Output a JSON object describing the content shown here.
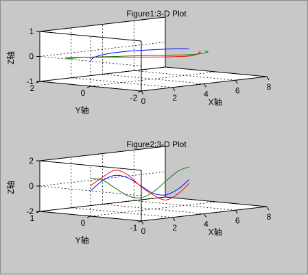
{
  "chart_data": [
    {
      "type": "line",
      "subtype": "3d-line",
      "title": "Figure1:3-D Plot",
      "xlabel": "X轴",
      "ylabel": "Y轴",
      "zlabel": "Z轴",
      "xlim": [
        0,
        8
      ],
      "ylim": [
        -2,
        2
      ],
      "zlim": [
        -1,
        1
      ],
      "xticks": [
        "0",
        "2",
        "4",
        "6",
        "8"
      ],
      "yticks": [
        "-2",
        "0",
        "2"
      ],
      "zticks": [
        "-1",
        "0",
        "1"
      ],
      "grid": true,
      "series": [
        {
          "color": "#0000ff",
          "points": [
            [
              0.0,
              0.0,
              0.02
            ],
            [
              1.0,
              0.5,
              0.02
            ],
            [
              2.0,
              0.8,
              0.03
            ],
            [
              3.0,
              0.9,
              0.04
            ],
            [
              4.0,
              0.8,
              0.05
            ],
            [
              5.0,
              0.5,
              0.06
            ],
            [
              6.0,
              0.2,
              0.05
            ],
            [
              6.28,
              0.0,
              0.04
            ]
          ]
        },
        {
          "color": "#008000",
          "points": [
            [
              0.0,
              1.0,
              0.0
            ],
            [
              1.0,
              0.8,
              0.01
            ],
            [
              2.0,
              0.3,
              0.02
            ],
            [
              3.0,
              -0.2,
              0.03
            ],
            [
              4.0,
              -0.7,
              0.02
            ],
            [
              5.0,
              -1.0,
              0.01
            ],
            [
              6.0,
              -0.9,
              0.02
            ],
            [
              6.28,
              -0.6,
              0.03
            ]
          ]
        },
        {
          "color": "#ff0000",
          "points": [
            [
              0.0,
              1.0,
              0.05
            ],
            [
              1.0,
              0.6,
              0.03
            ],
            [
              2.0,
              0.1,
              0.01
            ],
            [
              3.0,
              -0.4,
              -0.01
            ],
            [
              4.0,
              -0.8,
              -0.03
            ],
            [
              5.0,
              -0.9,
              -0.05
            ],
            [
              6.0,
              -0.6,
              -0.02
            ],
            [
              6.28,
              -0.4,
              0.0
            ]
          ]
        }
      ]
    },
    {
      "type": "line",
      "subtype": "3d-line",
      "title": "Figure2:3-D Plot",
      "xlabel": "X轴",
      "ylabel": "Y轴",
      "zlabel": "Z轴",
      "xlim": [
        0,
        8
      ],
      "ylim": [
        -1,
        1
      ],
      "zlim": [
        -2,
        2
      ],
      "xticks": [
        "0",
        "2",
        "4",
        "6",
        "8"
      ],
      "yticks": [
        "-1",
        "0",
        "1"
      ],
      "zticks": [
        "-2",
        "0",
        "2"
      ],
      "grid": true,
      "series": [
        {
          "color": "#0000ff",
          "points": [
            [
              0.0,
              0.0,
              0.0
            ],
            [
              0.8,
              0.0,
              0.72
            ],
            [
              1.6,
              0.0,
              1.0
            ],
            [
              2.4,
              0.0,
              0.68
            ],
            [
              3.2,
              0.0,
              -0.06
            ],
            [
              4.0,
              0.0,
              -0.76
            ],
            [
              4.8,
              0.0,
              -1.0
            ],
            [
              5.6,
              0.0,
              -0.63
            ],
            [
              6.28,
              0.0,
              0.0
            ]
          ]
        },
        {
          "color": "#008000",
          "points": [
            [
              0.0,
              0.0,
              1.0
            ],
            [
              0.8,
              0.0,
              0.7
            ],
            [
              1.6,
              0.0,
              -0.03
            ],
            [
              2.4,
              0.0,
              -0.74
            ],
            [
              3.2,
              0.0,
              -1.0
            ],
            [
              4.0,
              0.0,
              -0.65
            ],
            [
              4.8,
              0.0,
              0.09
            ],
            [
              5.6,
              0.0,
              0.78
            ],
            [
              6.28,
              0.0,
              1.0
            ]
          ]
        },
        {
          "color": "#ff0000",
          "points": [
            [
              0.0,
              0.0,
              0.4
            ],
            [
              0.8,
              0.0,
              1.0
            ],
            [
              1.6,
              0.0,
              1.4
            ],
            [
              2.4,
              0.0,
              0.9
            ],
            [
              3.2,
              0.0,
              -0.1
            ],
            [
              4.0,
              0.0,
              -0.9
            ],
            [
              4.8,
              0.0,
              -1.4
            ],
            [
              5.6,
              0.0,
              -1.0
            ],
            [
              6.28,
              0.0,
              -0.3
            ]
          ]
        }
      ]
    }
  ]
}
